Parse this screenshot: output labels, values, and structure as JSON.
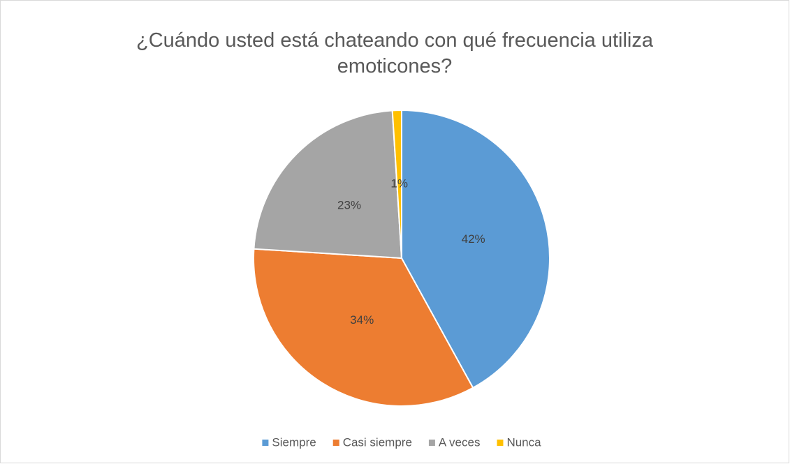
{
  "chart_data": {
    "type": "pie",
    "title": "¿Cuándo usted está chateando con qué frecuencia utiliza emoticones?",
    "categories": [
      "Siempre",
      "Casi siempre",
      "A veces",
      "Nunca"
    ],
    "values": [
      42,
      34,
      23,
      1
    ],
    "value_labels": [
      "42%",
      "34%",
      "23%",
      "1%"
    ],
    "colors": [
      "#5b9bd5",
      "#ed7d31",
      "#a5a5a5",
      "#ffc000"
    ],
    "legend": "bottom"
  }
}
